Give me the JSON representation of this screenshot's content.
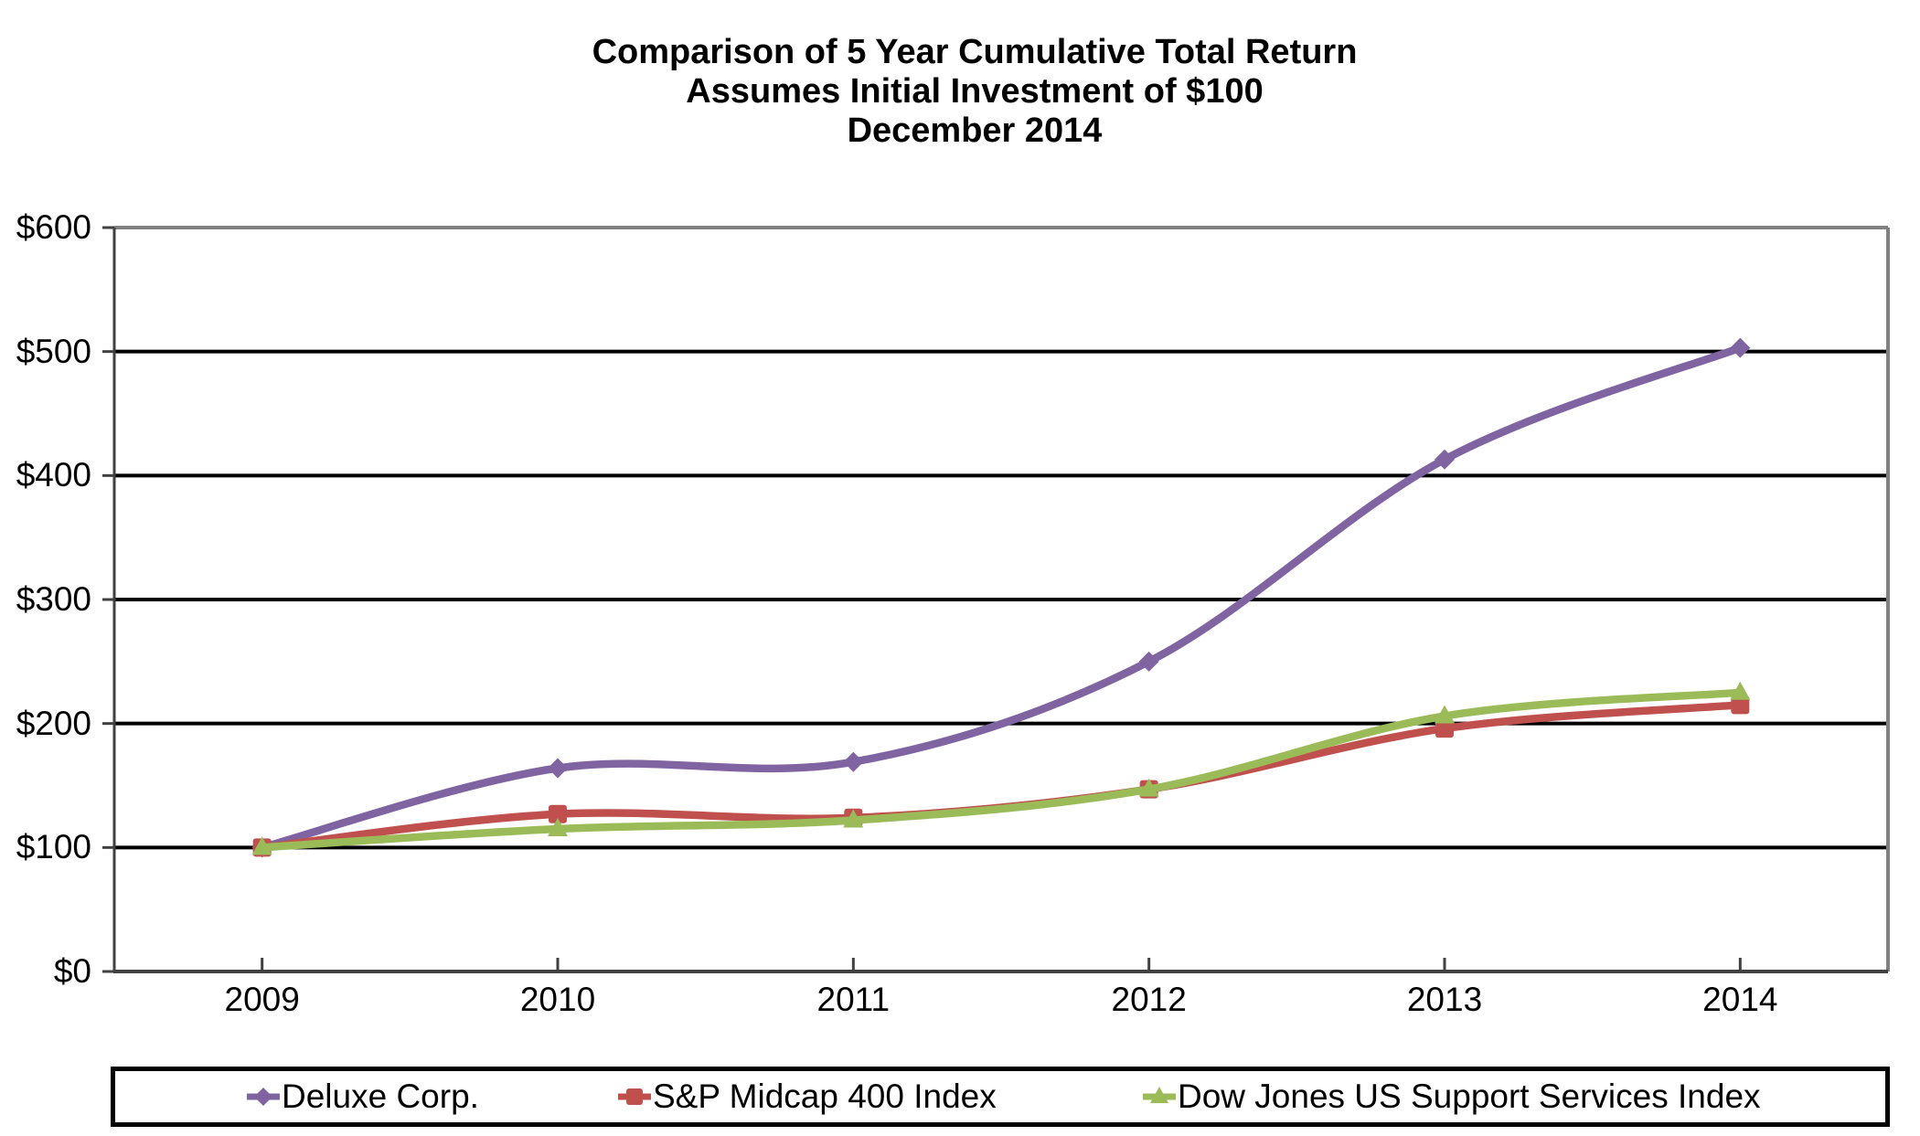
{
  "chart_data": {
    "type": "line",
    "title_lines": [
      "Comparison of 5 Year Cumulative Total Return",
      "Assumes Initial Investment of $100",
      "December 2014"
    ],
    "categories": [
      "2009",
      "2010",
      "2011",
      "2012",
      "2013",
      "2014"
    ],
    "series": [
      {
        "name": "Deluxe Corp.",
        "marker": "diamond",
        "color": "#8064A2",
        "values": [
          100,
          164,
          169,
          250,
          413,
          503
        ]
      },
      {
        "name": "S&P Midcap 400 Index",
        "marker": "square",
        "color": "#C0504D",
        "values": [
          100,
          127,
          124,
          147,
          196,
          215
        ]
      },
      {
        "name": "Dow Jones US Support Services Index",
        "marker": "triangle",
        "color": "#9BBB59",
        "values": [
          100,
          115,
          122,
          147,
          206,
          225
        ]
      }
    ],
    "ylim": [
      0,
      600
    ],
    "y_tick_interval": 100,
    "y_tick_labels_desc": [
      "$600",
      "$500",
      "$400",
      "$300",
      "$200",
      "$100",
      "$0"
    ],
    "x_axis_labels": [
      "2009",
      "2010",
      "2011",
      "2012",
      "2013",
      "2014"
    ],
    "grid": "horizontal",
    "gridline_color": "#000000",
    "border_color": "#808080",
    "axis_color": "#404040",
    "legend_position": "bottom",
    "smoothed_lines": true
  }
}
